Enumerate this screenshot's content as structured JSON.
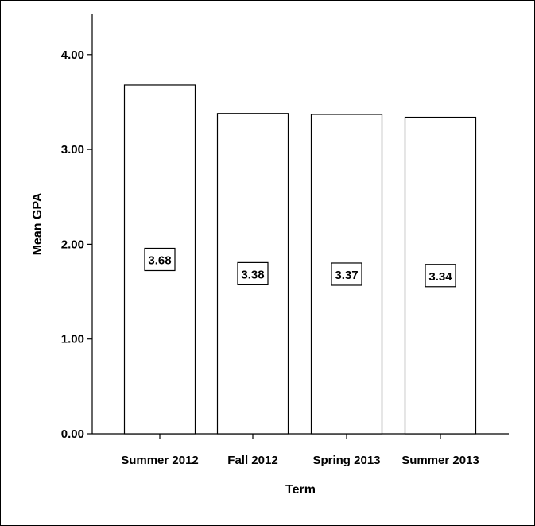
{
  "chart_data": {
    "type": "bar",
    "categories": [
      "Summer 2012",
      "Fall 2012",
      "Spring 2013",
      "Summer 2013"
    ],
    "values": [
      3.68,
      3.38,
      3.37,
      3.34
    ],
    "data_labels": [
      "3.68",
      "3.38",
      "3.37",
      "3.34"
    ],
    "xlabel": "Term",
    "ylabel": "Mean GPA",
    "ylim": [
      0,
      4.4
    ],
    "yticks": [
      0,
      1,
      2,
      3,
      4
    ],
    "ytick_labels": [
      "0.00",
      "1.00",
      "2.00",
      "3.00",
      "4.00"
    ],
    "bar_fill": "#ffffff",
    "bar_stroke": "#000000",
    "grid": false,
    "legend": "none"
  }
}
